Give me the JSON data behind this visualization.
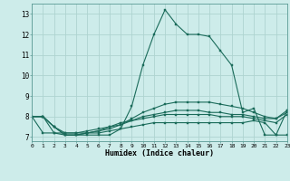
{
  "title": "",
  "xlabel": "Humidex (Indice chaleur)",
  "background_color": "#cdecea",
  "grid_color": "#aed4d0",
  "line_color": "#1a6b5a",
  "marker_color": "#1a6b5a",
  "x_values": [
    0,
    1,
    2,
    3,
    4,
    5,
    6,
    7,
    8,
    9,
    10,
    11,
    12,
    13,
    14,
    15,
    16,
    17,
    18,
    19,
    20,
    21,
    22,
    23
  ],
  "lines": [
    [
      8.0,
      8.0,
      7.2,
      7.1,
      7.1,
      7.1,
      7.1,
      7.1,
      7.4,
      8.5,
      10.5,
      12.0,
      13.2,
      12.5,
      12.0,
      12.0,
      11.9,
      11.2,
      10.5,
      8.2,
      8.4,
      7.1,
      7.1,
      8.3
    ],
    [
      8.0,
      8.0,
      7.5,
      7.2,
      7.2,
      7.3,
      7.4,
      7.5,
      7.7,
      7.8,
      7.9,
      8.0,
      8.1,
      8.1,
      8.1,
      8.1,
      8.1,
      8.0,
      8.0,
      8.0,
      7.9,
      7.8,
      7.7,
      8.1
    ],
    [
      8.0,
      8.0,
      7.5,
      7.1,
      7.1,
      7.2,
      7.3,
      7.5,
      7.6,
      7.8,
      8.0,
      8.1,
      8.2,
      8.3,
      8.3,
      8.3,
      8.2,
      8.2,
      8.1,
      8.1,
      8.0,
      7.9,
      7.9,
      8.2
    ],
    [
      8.0,
      8.0,
      7.5,
      7.1,
      7.1,
      7.2,
      7.3,
      7.4,
      7.6,
      7.9,
      8.2,
      8.4,
      8.6,
      8.7,
      8.7,
      8.7,
      8.7,
      8.6,
      8.5,
      8.4,
      8.2,
      8.0,
      7.9,
      8.3
    ],
    [
      8.0,
      7.2,
      7.2,
      7.2,
      7.2,
      7.2,
      7.2,
      7.3,
      7.4,
      7.5,
      7.6,
      7.7,
      7.7,
      7.7,
      7.7,
      7.7,
      7.7,
      7.7,
      7.7,
      7.7,
      7.8,
      7.7,
      7.1,
      7.1
    ]
  ],
  "xlim": [
    0,
    23
  ],
  "ylim": [
    6.8,
    13.5
  ],
  "yticks": [
    7,
    8,
    9,
    10,
    11,
    12,
    13
  ],
  "xticks": [
    0,
    1,
    2,
    3,
    4,
    5,
    6,
    7,
    8,
    9,
    10,
    11,
    12,
    13,
    14,
    15,
    16,
    17,
    18,
    19,
    20,
    21,
    22,
    23
  ]
}
